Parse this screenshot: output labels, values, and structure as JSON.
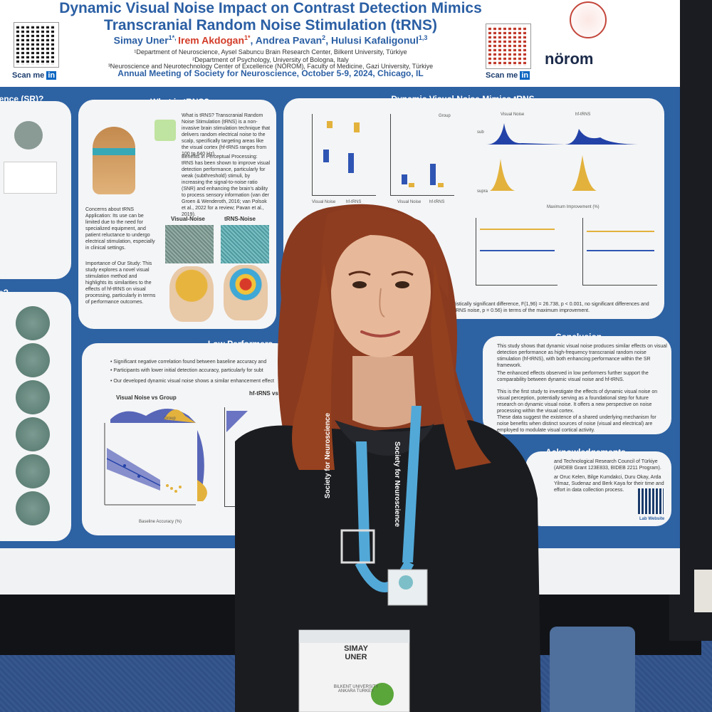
{
  "poster": {
    "title_line1": "Dynamic Visual Noise Impact on Contrast Detection Mimics",
    "title_line2": "Transcranial Random Noise Stimulation (tRNS)",
    "authors_a": "Simay Uner",
    "authors_a_sup": "1*, ",
    "authors_b": "Irem Akdogan",
    "authors_b_sup": "1*",
    "authors_c": ", Andrea Pavan",
    "authors_c_sup": "2",
    "authors_d": ", Hulusi Kafaligonul",
    "authors_d_sup": "1,3",
    "aff1": "¹Department of Neuroscience, Aysel Sabuncu Brain Research Center, Bilkent University, Türkiye",
    "aff2": "²Department of Psychology, University of Bologna, Italy",
    "aff3": "³Neuroscience and Neurotechnology Center of Excellence (NÖROM), Faculty of Medicine, Gazi University, Türkiye",
    "meeting": "Annual Meeting of Society for Neuroscience, October 5-9, 2024, Chicago, IL",
    "scan_left": "Scan me",
    "scan_right": "Scan me",
    "logo": "nörom",
    "section_sr": "ence (SR)?",
    "section_trns": "What is tRNS?",
    "section_dvn": "Dynamic Visual Noise Mimics tRNS Effects",
    "section_low": "Low Performers Benefit",
    "section_conclusion": "Conclusion",
    "section_ack": "Acknowledgements",
    "section_e": "e?",
    "trns_q": "What is tRNS?",
    "trns_q_text": "Transcranial Random Noise Stimulation (tRNS) is a non-invasive brain stimulation technique that delivers random electrical noise to the scalp, specifically targeting areas like the visual cortex (hf-tRNS ranges from 100 to 640 Hz).",
    "benefits_q": "Benefits in Perceptual Processing:",
    "benefits_text": "tRNS has been shown to improve visual detection performance, particularly for weak (subthreshold) stimuli, by increasing the signal-to-noise ratio (SNR) and enhancing the brain's ability to process sensory information (van der Groen & Wenderoth, 2016; van Polsok et al., 2022 for a review; Pavan et al., 2019).",
    "concerns_q": "Concerns about tRNS Application:",
    "concerns_text": "Its use can be limited due to the need for specialized equipment, and patient reluctance to undergo electrical stimulation, especially in clinical settings.",
    "importance_q": "Importance of Our Study:",
    "importance_text": "This study explores a novel visual stimulation method and highlights its similarities to the effects of hf-tRNS on visual processing, particularly in terms of performance outcomes.",
    "visual_noise": "Visual-Noise",
    "trns_noise": "tRNS-Noise",
    "bullet1": "Significant negative correlation found between baseline accuracy and",
    "bullet2": "Participants with lower initial detection accuracy, particularly for subt",
    "bullet3": "Our developed dynamic visual noise shows a similar enhancement effect",
    "vn_vs_group": "Visual Noise vs Group",
    "hf_vs_group": "hf-tRNS vs G",
    "baseline_acc": "Baseline Accuracy (%)",
    "max_impr": "Maximum Improvement (%)",
    "vn_label": "Visual Noise",
    "hf_label": "hf-tRNS",
    "sub": "sub",
    "supra": "supra",
    "group": "Group",
    "conclusion1": "This study shows that dynamic visual noise produces similar effects on visual detection performance as high-frequency transcranial random noise stimulation (hf-tRNS), with both enhancing performance within the SR framework.",
    "conclusion2": "The enhanced effects observed in low performers further support the comparability between dynamic visual noise and hf-tRNS.",
    "conclusion3": "This is the first study to investigate the effects of dynamic visual noise on visual perception, potentially serving as a foundational step for future research on dynamic visual noise. It offers a new perspective on noise processing within the visual cortex.",
    "conclusion4": "These data suggest the existence of a shared underlying mechanism for noise benefits when distinct sources of noise (visual and electrical) are employed to modulate visual cortical activity.",
    "ack_text": "and Technological Research Council of Türkiye (ARDEB Grant 123E833, BIDEB 2211 Program).",
    "ack_text2": "ar Oruc Kelen, Bilge Kumdakci, Duru Okay, Arda Yilmaz, Sudenaz and Berk Kaya for their time and effort in data collection process.",
    "stats": "tistically significant difference, F(1,96) = 26.738, p < 0.001, no significant differences and tRNS noise, p = 0.56) in terms of the maximum improvement.",
    "lab_website": "Lab Website"
  },
  "lanyard": {
    "text": "Society for Neuroscience"
  },
  "badge": {
    "name_line1": "SIMAY",
    "name_line2": "UNER",
    "inst_line1": "BILKENT UNIVERSITY",
    "inst_line2": "ANKARA TURKEY"
  },
  "colors": {
    "poster_blue": "#2d62a3",
    "author_red": "#d23b27",
    "hair": "#8a3a1f",
    "hoodie": "#1b1c20",
    "lanyard": "#52a9d8"
  }
}
